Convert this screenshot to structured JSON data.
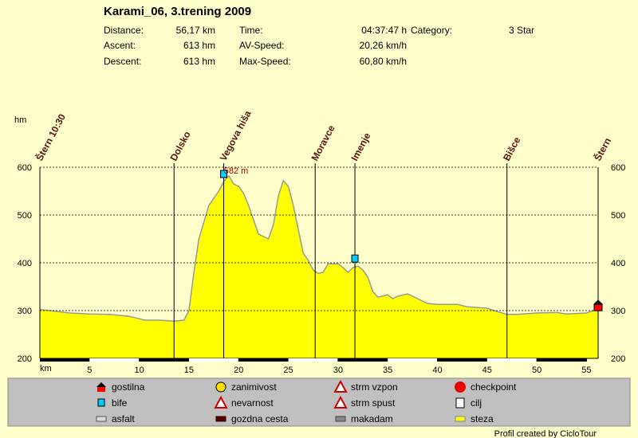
{
  "header": {
    "title": "Karami_06, 3.trening 2009",
    "fields": [
      {
        "label": "Distance:",
        "value": "56,17 km"
      },
      {
        "label": "Time:",
        "value": "04:37:47 h"
      },
      {
        "label": "Category:",
        "value": "3 Star"
      },
      {
        "label": "Ascent:",
        "value": "613 hm"
      },
      {
        "label": "AV-Speed:",
        "value": "20,26 km/h"
      },
      {
        "label": "Descent:",
        "value": "613 hm"
      },
      {
        "label": "Max-Speed:",
        "value": "60,80 km/h"
      }
    ]
  },
  "chart_data": {
    "type": "area",
    "y_label": "hm",
    "x_label": "km",
    "color": "#ffff00",
    "line_color": "#999999",
    "x": [
      0,
      1,
      3,
      5,
      7,
      9,
      10,
      10.5,
      12,
      13.5,
      14.5,
      15,
      15.5,
      16,
      17,
      18,
      18.5,
      19,
      19.5,
      20,
      20.5,
      21,
      21.5,
      22,
      22.5,
      23,
      23.5,
      24,
      24.5,
      25,
      25.5,
      26,
      26.5,
      27,
      27.5,
      28,
      28.5,
      29,
      30,
      30.5,
      31,
      31.5,
      32,
      32.5,
      33,
      33.5,
      34,
      35,
      35.5,
      36,
      37,
      38,
      39,
      40,
      42,
      43,
      45,
      46,
      47,
      48,
      50,
      52,
      53,
      55,
      56.17
    ],
    "values": [
      302,
      300,
      295,
      293,
      292,
      288,
      283,
      280,
      280,
      278,
      280,
      300,
      380,
      450,
      520,
      550,
      570,
      582,
      565,
      560,
      545,
      520,
      490,
      460,
      455,
      450,
      480,
      540,
      572,
      560,
      520,
      470,
      420,
      405,
      385,
      378,
      380,
      398,
      398,
      390,
      380,
      390,
      393,
      385,
      370,
      340,
      328,
      333,
      325,
      330,
      335,
      325,
      315,
      313,
      313,
      308,
      305,
      298,
      292,
      292,
      295,
      296,
      293,
      295,
      303
    ],
    "xlim": [
      0,
      56.17
    ],
    "ylim": [
      200,
      600
    ],
    "xticks": [
      5,
      10,
      15,
      20,
      25,
      30,
      35,
      40,
      45,
      50,
      55
    ],
    "yticks": [
      200,
      300,
      400,
      500,
      600
    ],
    "grid": true,
    "max": {
      "label": "582 m",
      "km": 19,
      "value": 582
    },
    "waypoints": [
      {
        "name": "Štern 10:30",
        "km": 0
      },
      {
        "name": "Dolsko",
        "km": 13.5
      },
      {
        "name": "Vegova hiša",
        "km": 18.5,
        "icon": "bife"
      },
      {
        "name": "Moravce",
        "km": 27.7
      },
      {
        "name": "Imenje",
        "km": 31.7,
        "icon": "bife"
      },
      {
        "name": "Bišce",
        "km": 47
      },
      {
        "name": "Štern",
        "km": 56.17,
        "icon": "gostilna"
      }
    ]
  },
  "legend": [
    "gostilna",
    "zanimivost",
    "strm vzpon",
    "checkpoint",
    "bife",
    "nevarnost",
    "strm spust",
    "cilj",
    "asfalt",
    "gozdna cesta",
    "makadam",
    "steza"
  ],
  "footer": "Profil created by CicloTour"
}
